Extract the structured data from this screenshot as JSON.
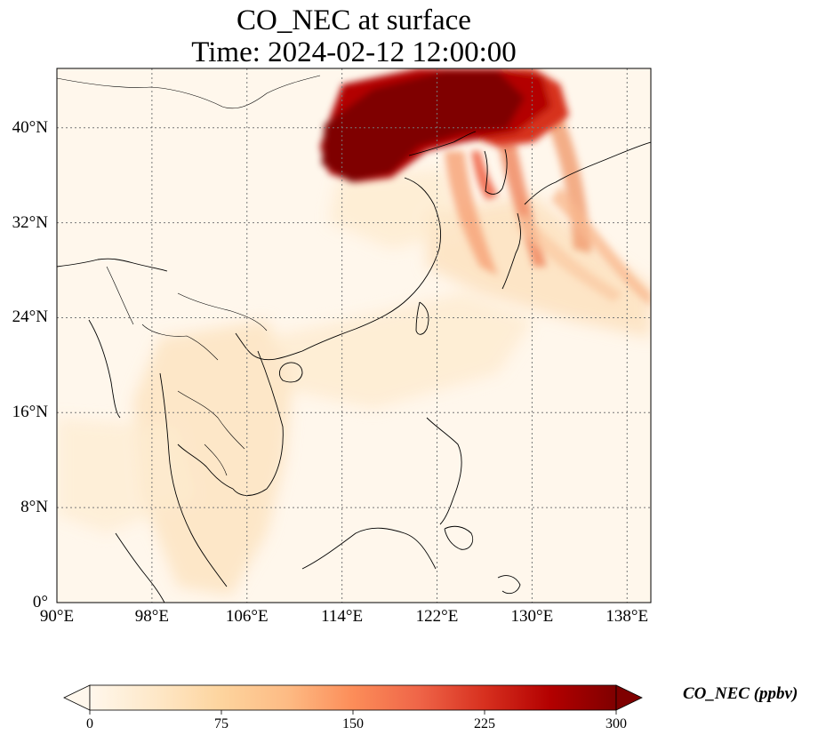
{
  "title": {
    "line1": "CO_NEC at surface",
    "line2": "Time: 2024-02-12 12:00:00"
  },
  "map": {
    "projection": "PlateCarree",
    "lon_range": [
      90,
      140
    ],
    "lat_range": [
      0,
      45
    ],
    "gridlines": "dotted",
    "lat_ticks": [
      {
        "value": 0,
        "label": "0°"
      },
      {
        "value": 8,
        "label": "8°N"
      },
      {
        "value": 16,
        "label": "16°N"
      },
      {
        "value": 24,
        "label": "24°N"
      },
      {
        "value": 32,
        "label": "32°N"
      },
      {
        "value": 40,
        "label": "40°N"
      }
    ],
    "lon_ticks": [
      {
        "value": 90,
        "label": "90°E"
      },
      {
        "value": 98,
        "label": "98°E"
      },
      {
        "value": 106,
        "label": "106°E"
      },
      {
        "value": 114,
        "label": "114°E"
      },
      {
        "value": 122,
        "label": "122°E"
      },
      {
        "value": 130,
        "label": "130°E"
      },
      {
        "value": 138,
        "label": "138°E"
      }
    ],
    "colormap": "OrRd",
    "features": [
      "coastlines",
      "country borders"
    ]
  },
  "colorbar": {
    "label": "CO_NEC (ppbv)",
    "min": 0,
    "max": 300,
    "extend": "both",
    "ticks": [
      "0",
      "75",
      "150",
      "225",
      "300"
    ],
    "colors": [
      "#fff7ec",
      "#fee8c8",
      "#fdd49e",
      "#fdbb84",
      "#fc8d59",
      "#ef6548",
      "#d7301f",
      "#b30000",
      "#7f0000"
    ]
  }
}
